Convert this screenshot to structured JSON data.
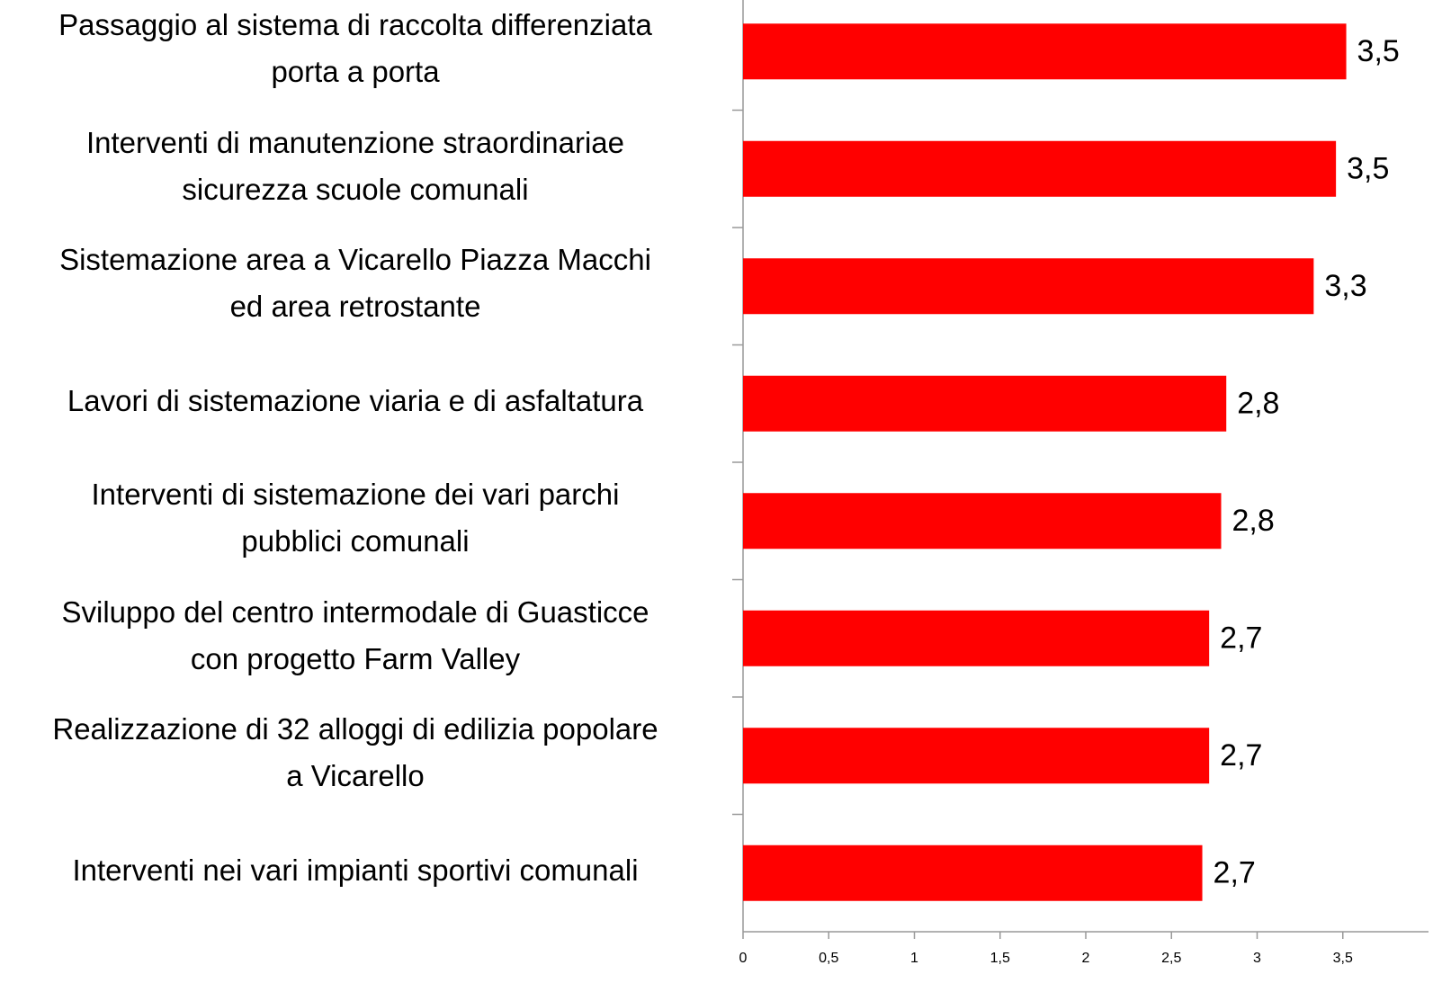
{
  "chart_data": {
    "type": "barh",
    "categories": [
      "Passaggio al sistema di raccolta differenziata\nporta a porta",
      "Interventi di manutenzione straordinariae\nsicurezza scuole comunali",
      "Sistemazione area a Vicarello Piazza Macchi\ned area retrostante",
      "Lavori di sistemazione viaria e di asfaltatura",
      "Interventi di sistemazione dei vari parchi\npubblici comunali",
      "Sviluppo del centro intermodale di Guasticce\ncon progetto Farm Valley",
      "Realizzazione di 32 alloggi di edilizia popolare\na Vicarello",
      "Interventi nei vari impianti sportivi comunali"
    ],
    "values": [
      3.52,
      3.46,
      3.33,
      2.82,
      2.79,
      2.72,
      2.72,
      2.68
    ],
    "value_labels": [
      "3,5",
      "3,5",
      "3,3",
      "2,8",
      "2,8",
      "2,7",
      "2,7",
      "2,7"
    ],
    "color": "#ff0000",
    "xlim": [
      0,
      4
    ],
    "xticks": [
      0,
      {
        "value": 0.5,
        "label": "0,5"
      },
      1,
      {
        "value": 1.5,
        "label": "1,5"
      },
      2,
      {
        "value": 2.5,
        "label": "2,5"
      },
      3,
      {
        "value": 3.5,
        "label": "3,5"
      }
    ]
  }
}
